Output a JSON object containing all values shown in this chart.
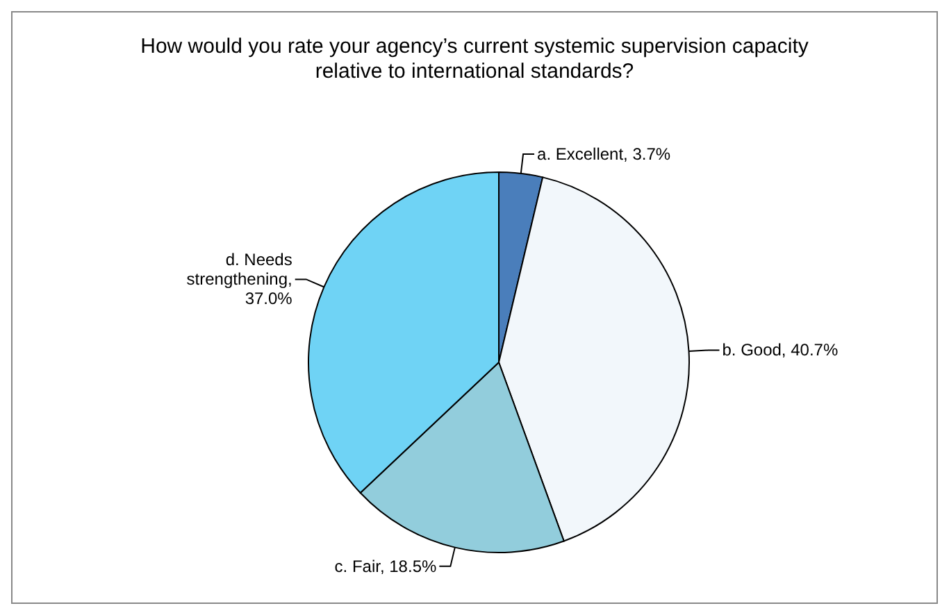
{
  "chart_data": {
    "type": "pie",
    "title": "How would you rate your agency’s current systemic supervision capacity relative to international standards?",
    "categories": [
      "a. Excellent, 3.7%",
      "b. Good, 40.7%",
      "c. Fair, 18.5%",
      "d. Needs strengthening, 37.0%"
    ],
    "values": [
      3.7,
      40.7,
      18.5,
      37.0
    ],
    "colors": [
      "#4a7ebb",
      "#f2f7fb",
      "#92cddc",
      "#6fd3f5"
    ]
  }
}
